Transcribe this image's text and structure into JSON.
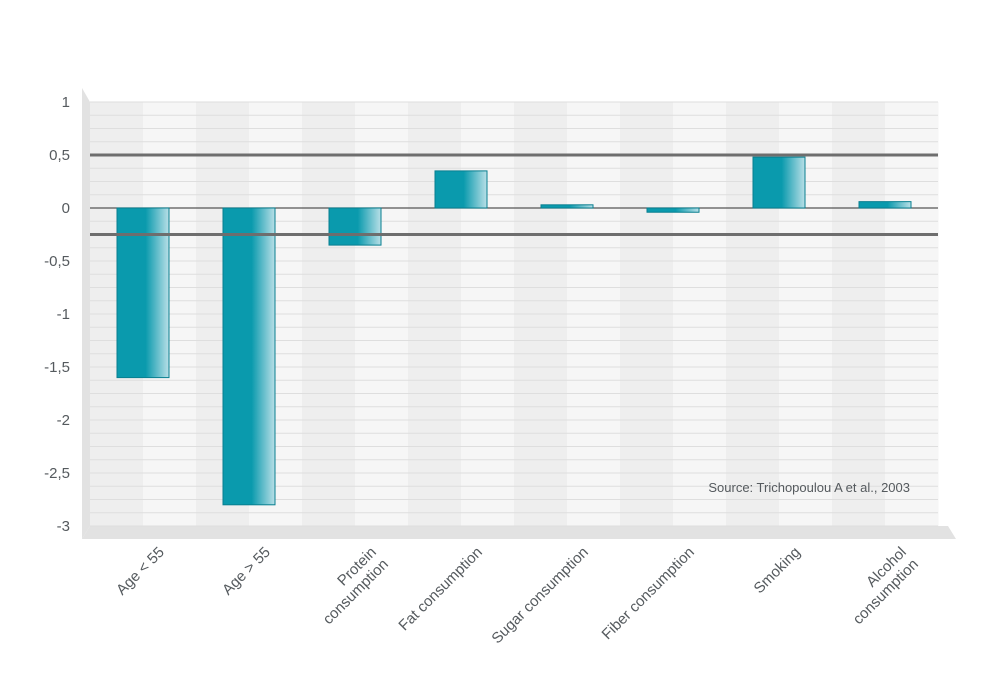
{
  "chart_data": {
    "type": "bar",
    "categories": [
      [
        "Age < 55"
      ],
      [
        "Age > 55"
      ],
      [
        "Protein",
        "consumption"
      ],
      [
        "Fat consumption"
      ],
      [
        "Sugar consumption"
      ],
      [
        "Fiber consumption"
      ],
      [
        "Smoking"
      ],
      [
        "Alcohol",
        "consumption"
      ]
    ],
    "values": [
      -1.6,
      -2.8,
      -0.35,
      0.35,
      0.03,
      -0.04,
      0.48,
      0.06
    ],
    "ylim": [
      -3,
      1
    ],
    "yticks": [
      1,
      0.5,
      0,
      -0.5,
      -1,
      -1.5,
      -2,
      -2.5,
      -3
    ],
    "ytick_labels": [
      "1",
      "0,5",
      "0",
      "-0,5",
      "-1",
      "-1,5",
      "-2",
      "-2,5",
      "-3"
    ],
    "reference_lines": [
      0.5,
      -0.25
    ],
    "grid": true,
    "source": "Source: Trichopoulou A et al., 2003",
    "colors": {
      "bar_dark": "#0a9aad",
      "bar_light": "#b9dfe7",
      "bar_stroke": "#087f90",
      "grid": "#dedede",
      "reference_line": "#6e6e6e",
      "panel_a": "#eeeeee",
      "panel_b": "#f6f6f6"
    }
  }
}
